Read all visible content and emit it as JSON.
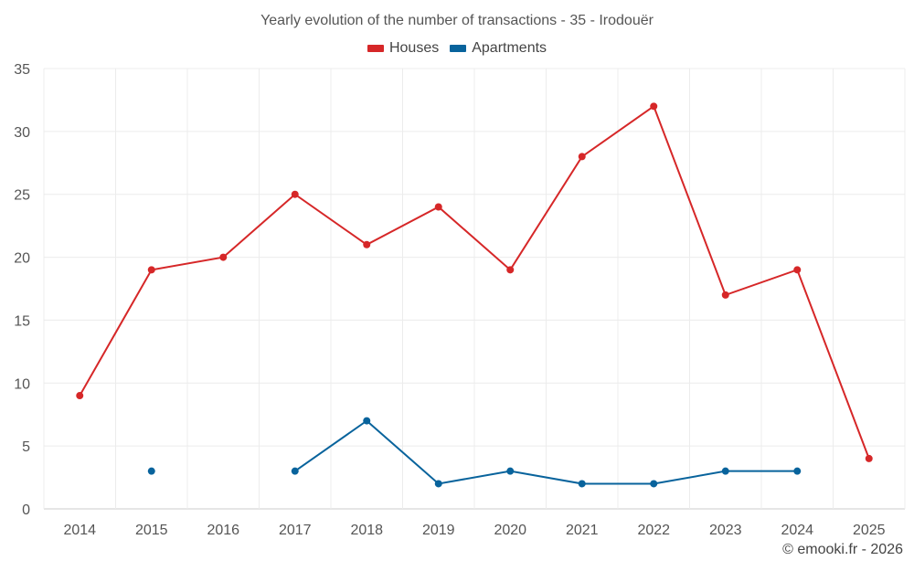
{
  "chart_data": {
    "type": "line",
    "title": "Yearly evolution of the number of transactions - 35 - Irodouër",
    "xlabel": "",
    "ylabel": "",
    "categories": [
      "2014",
      "2015",
      "2016",
      "2017",
      "2018",
      "2019",
      "2020",
      "2021",
      "2022",
      "2023",
      "2024",
      "2025"
    ],
    "ylim": [
      0,
      35
    ],
    "yticks": [
      0,
      5,
      10,
      15,
      20,
      25,
      30,
      35
    ],
    "grid": true,
    "legend_position": "top-center",
    "series": [
      {
        "name": "Houses",
        "color": "#d62728",
        "values": [
          9,
          19,
          20,
          25,
          21,
          24,
          19,
          28,
          32,
          17,
          19,
          4
        ]
      },
      {
        "name": "Apartments",
        "color": "#08639c",
        "values": [
          null,
          3,
          null,
          3,
          7,
          2,
          3,
          2,
          2,
          3,
          3,
          null
        ]
      }
    ]
  },
  "footer": {
    "copyright": "© emooki.fr - 2026"
  }
}
